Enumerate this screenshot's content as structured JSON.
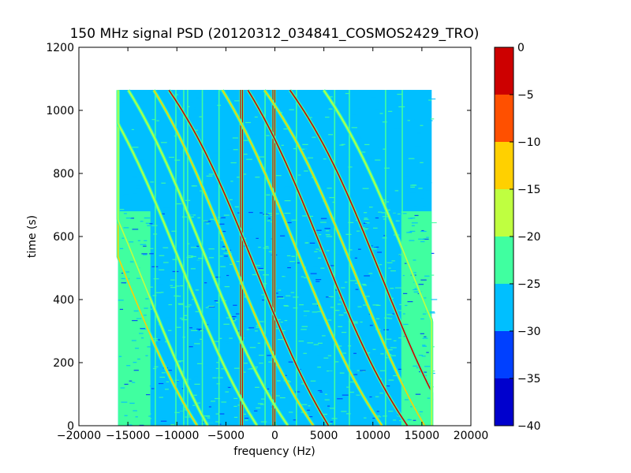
{
  "chart_data": {
    "type": "heatmap",
    "title": "150 MHz signal PSD (20120312_034841_COSMOS2429_TRO)",
    "xlabel": "frequency (Hz)",
    "ylabel": "time (s)",
    "xlim": [
      -20000,
      20000
    ],
    "ylim": [
      0,
      1200
    ],
    "x_ticks": [
      "−20000",
      "−15000",
      "−10000",
      "−5000",
      "0",
      "5000",
      "10000",
      "15000",
      "20000"
    ],
    "x_tick_values": [
      -20000,
      -15000,
      -10000,
      -5000,
      0,
      5000,
      10000,
      15000,
      20000
    ],
    "y_ticks": [
      "0",
      "200",
      "400",
      "600",
      "800",
      "1000",
      "1200"
    ],
    "y_tick_values": [
      0,
      200,
      400,
      600,
      800,
      1000,
      1200
    ],
    "data_extent": {
      "x": [
        -16000,
        16000
      ],
      "y": [
        0,
        1065
      ]
    },
    "noise_floor_change_time": 680,
    "colorbar": {
      "levels": [
        -40,
        -35,
        -30,
        -25,
        -20,
        -15,
        -10,
        -5,
        0
      ],
      "tick_labels": [
        "−40",
        "−35",
        "−30",
        "−25",
        "−20",
        "−15",
        "−10",
        "−5",
        "0"
      ],
      "colors": [
        "#0000cd",
        "#0040ff",
        "#00bfff",
        "#40ffa0",
        "#bfff40",
        "#ffd000",
        "#ff5000",
        "#cd0000"
      ]
    },
    "background_colors": {
      "quiet": "#00bfff",
      "noisy": "#40ffa0",
      "speckle": "#0040ff"
    },
    "vertical_lines_hz": [
      -12200,
      -10100,
      -9300,
      -8900,
      -7400,
      -5700,
      -3500,
      -3300,
      -1000,
      -200,
      0,
      2200,
      6100,
      7600,
      11300,
      13000
    ],
    "doppler_tracks": [
      {
        "center_hz": -15800,
        "center_time_s": 520,
        "level_db": -15
      },
      {
        "center_hz": -13200,
        "center_time_s": 440,
        "level_db": -17
      },
      {
        "center_hz": -9700,
        "center_time_s": 520,
        "level_db": -17
      },
      {
        "center_hz": -7400,
        "center_time_s": 560,
        "level_db": -16
      },
      {
        "center_hz": -4800,
        "center_time_s": 560,
        "level_db": -13
      },
      {
        "center_hz": -2000,
        "center_time_s": 500,
        "level_db": -5
      },
      {
        "center_hz": 2200,
        "center_time_s": 560,
        "level_db": -12
      },
      {
        "center_hz": 4800,
        "center_time_s": 560,
        "level_db": -3
      },
      {
        "center_hz": 8200,
        "center_time_s": 480,
        "level_db": -15
      },
      {
        "center_hz": 10800,
        "center_time_s": 480,
        "level_db": -3
      },
      {
        "center_hz": 13800,
        "center_time_s": 500,
        "level_db": -16
      }
    ]
  }
}
